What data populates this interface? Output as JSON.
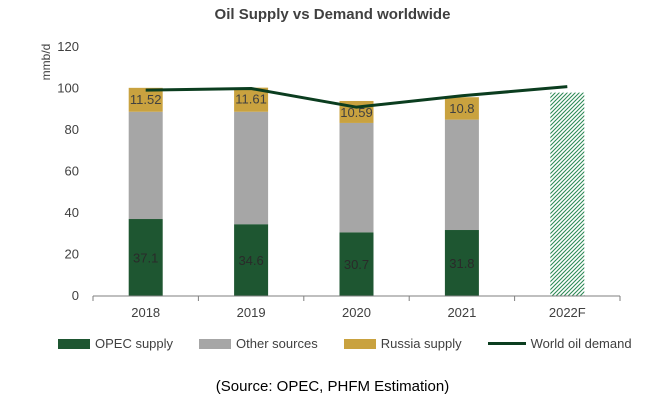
{
  "chart_data": {
    "type": "bar",
    "title": "Oil Supply vs Demand worldwide",
    "ylabel": "mmb/d",
    "ylim": [
      0,
      120
    ],
    "yticks": [
      0,
      20,
      40,
      60,
      80,
      100,
      120
    ],
    "categories": [
      "2018",
      "2019",
      "2020",
      "2021",
      "2022F"
    ],
    "series": [
      {
        "name": "OPEC supply",
        "color": "#1e5631",
        "values": [
          37.1,
          34.6,
          30.7,
          31.8,
          null
        ],
        "labels": [
          "37.1",
          "34.6",
          "30.7",
          "31.8",
          ""
        ]
      },
      {
        "name": "Other sources",
        "color": "#a6a6a6",
        "values": [
          51.7,
          54.2,
          52.7,
          53.2,
          null
        ]
      },
      {
        "name": "Russia supply",
        "color": "#c9a23f",
        "values": [
          11.52,
          11.61,
          10.59,
          10.8,
          null
        ],
        "labels": [
          "11.52",
          "11.61",
          "10.59",
          "10.8",
          ""
        ]
      },
      {
        "name": "World oil demand",
        "type": "line",
        "color": "#0b3d1f",
        "values": [
          99.2,
          100.0,
          91.0,
          96.5,
          100.9
        ]
      }
    ],
    "forecast_bar": {
      "category": "2022F",
      "value": 98,
      "color": "#2e8b57",
      "pattern": "hatched"
    },
    "legend_position": "bottom",
    "grid": false
  },
  "legend": [
    "OPEC supply",
    "Other sources",
    "Russia supply",
    "World oil demand"
  ],
  "source": "(Source: OPEC, PHFM Estimation)"
}
